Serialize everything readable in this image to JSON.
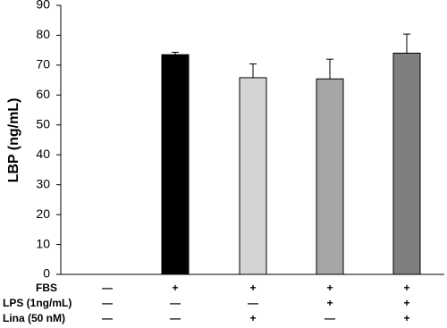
{
  "chart_data": {
    "type": "bar",
    "y_label": "LBP (ng/mL)",
    "values": [
      null,
      73.5,
      65.8,
      65.4,
      74
    ],
    "errors": [
      null,
      0.8,
      4.6,
      6.6,
      6.4
    ],
    "colors": [
      "#ffffff",
      "#000000",
      "#d4d4d4",
      "#a6a6a6",
      "#7f7f7f"
    ],
    "ylim": [
      0,
      90
    ],
    "yticks": [
      0,
      10,
      20,
      30,
      40,
      50,
      60,
      70,
      80,
      90
    ],
    "conditions": [
      {
        "label": "FBS",
        "values": [
          "—",
          "+",
          "+",
          "+",
          "+"
        ]
      },
      {
        "label": "LPS (1ng/mL)",
        "values": [
          "—",
          "—",
          "—",
          "+",
          "+"
        ]
      },
      {
        "label": "Lina (50 nM)",
        "values": [
          "—",
          "—",
          "+",
          "—",
          "+"
        ]
      }
    ]
  }
}
